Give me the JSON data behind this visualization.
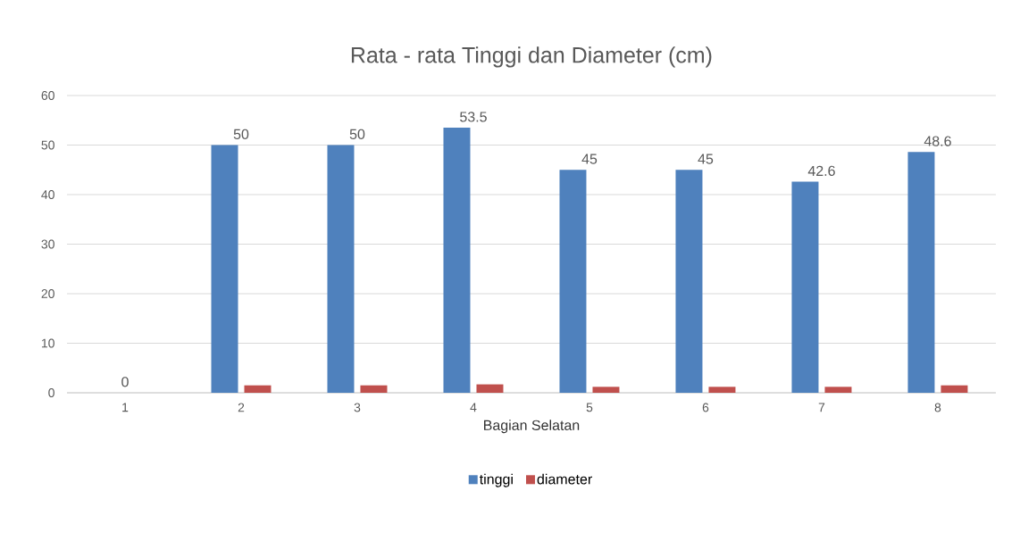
{
  "chart_data": {
    "type": "bar",
    "title": "Rata - rata Tinggi dan Diameter (cm)",
    "xlabel": "Bagian Selatan",
    "categories": [
      "1",
      "2",
      "3",
      "4",
      "5",
      "6",
      "7",
      "8"
    ],
    "series": [
      {
        "name": "tinggi",
        "color": "#4f81bd",
        "values": [
          0,
          50,
          50,
          53.5,
          45,
          45,
          42.6,
          48.6
        ],
        "value_labels": [
          "0",
          "50",
          "50",
          "53.5",
          "45",
          "45",
          "42.6",
          "48.6"
        ]
      },
      {
        "name": "diameter",
        "color": "#c0504d",
        "values": [
          0,
          1.5,
          1.5,
          1.7,
          1.2,
          1.2,
          1.2,
          1.5
        ]
      }
    ],
    "ylim": [
      0,
      60
    ],
    "yticks": [
      0,
      10,
      20,
      30,
      40,
      50,
      60
    ],
    "grid": "y",
    "legend": "bottom"
  }
}
